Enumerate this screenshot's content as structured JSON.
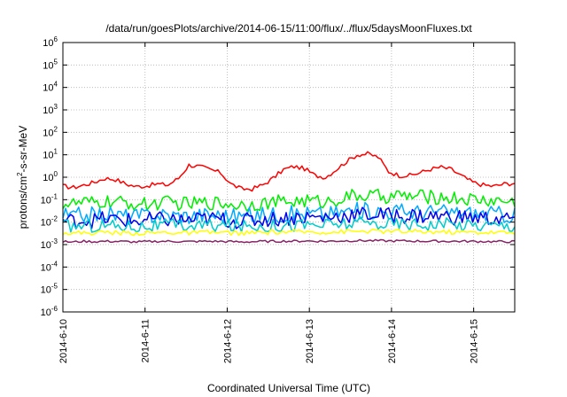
{
  "chart_data": {
    "type": "line",
    "title": "/data/run/goesPlots/archive/2014-06-15/11:00/flux/../flux/5daysMoonFluxes.txt",
    "xlabel": "Coordinated Universal Time (UTC)",
    "ylabel_parts": [
      "protons/cm",
      "2",
      "-s-sr-MeV"
    ],
    "x_range_days": [
      0,
      5.5
    ],
    "y_scale": "log",
    "ylim": [
      1e-06,
      1000000.0
    ],
    "grid": true,
    "x_ticks": [
      "2014-6-10",
      "2014-6-11",
      "2014-6-12",
      "2014-6-13",
      "2014-6-14",
      "2014-6-15"
    ],
    "y_ticks": [
      {
        "base": "10",
        "exp": "-6"
      },
      {
        "base": "10",
        "exp": "-5"
      },
      {
        "base": "10",
        "exp": "-4"
      },
      {
        "base": "10",
        "exp": "-3"
      },
      {
        "base": "10",
        "exp": "-2"
      },
      {
        "base": "10",
        "exp": "-1"
      },
      {
        "base": "10",
        "exp": "0"
      },
      {
        "base": "10",
        "exp": "1"
      },
      {
        "base": "10",
        "exp": "2"
      },
      {
        "base": "10",
        "exp": "3"
      },
      {
        "base": "10",
        "exp": "4"
      },
      {
        "base": "10",
        "exp": "5"
      },
      {
        "base": "10",
        "exp": "6"
      }
    ],
    "series": [
      {
        "color": "#ff0000",
        "values": [
          0.4,
          0.35,
          0.45,
          0.6,
          0.9,
          0.8,
          0.5,
          0.38,
          0.42,
          0.5,
          0.45,
          0.9,
          3.5,
          3.0,
          2.2,
          1.6,
          0.5,
          0.3,
          0.3,
          0.45,
          0.9,
          2.2,
          3.0,
          2.4,
          1.2,
          1.0,
          2.2,
          5.0,
          10.0,
          11.0,
          8.0,
          1.8,
          1.2,
          1.2,
          1.6,
          2.3,
          2.8,
          2.2,
          1.1,
          0.6,
          0.45,
          0.4,
          0.5,
          0.55
        ]
      },
      {
        "color": "#00ee00",
        "values": [
          0.07,
          0.065,
          0.072,
          0.068,
          0.08,
          0.075,
          0.07,
          0.065,
          0.06,
          0.07,
          0.072,
          0.068,
          0.065,
          0.07,
          0.075,
          0.07,
          0.065,
          0.06,
          0.068,
          0.07,
          0.075,
          0.08,
          0.085,
          0.09,
          0.085,
          0.08,
          0.1,
          0.13,
          0.15,
          0.15,
          0.14,
          0.14,
          0.15,
          0.14,
          0.14,
          0.13,
          0.13,
          0.12,
          0.11,
          0.1,
          0.095,
          0.09,
          0.085,
          0.08
        ]
      },
      {
        "color": "#00aaff",
        "values": [
          0.02,
          0.018,
          0.022,
          0.02,
          0.024,
          0.021,
          0.019,
          0.018,
          0.02,
          0.022,
          0.021,
          0.02,
          0.019,
          0.021,
          0.022,
          0.02,
          0.019,
          0.018,
          0.02,
          0.021,
          0.022,
          0.023,
          0.024,
          0.025,
          0.024,
          0.023,
          0.026,
          0.03,
          0.032,
          0.033,
          0.032,
          0.03,
          0.031,
          0.03,
          0.029,
          0.028,
          0.028,
          0.027,
          0.026,
          0.025,
          0.024,
          0.023,
          0.022,
          0.021
        ]
      },
      {
        "color": "#0000ee",
        "values": [
          0.012,
          0.011,
          0.013,
          0.012,
          0.014,
          0.013,
          0.012,
          0.011,
          0.012,
          0.013,
          0.013,
          0.012,
          0.012,
          0.013,
          0.014,
          0.013,
          0.012,
          0.011,
          0.012,
          0.013,
          0.014,
          0.015,
          0.016,
          0.017,
          0.016,
          0.016,
          0.018,
          0.02,
          0.022,
          0.022,
          0.021,
          0.02,
          0.02,
          0.019,
          0.019,
          0.018,
          0.018,
          0.017,
          0.016,
          0.016,
          0.015,
          0.014,
          0.014,
          0.013
        ]
      },
      {
        "color": "#00cccc",
        "values": [
          0.007,
          0.0065,
          0.0072,
          0.0068,
          0.0075,
          0.007,
          0.0068,
          0.0065,
          0.0068,
          0.007,
          0.0072,
          0.007,
          0.0068,
          0.007,
          0.0072,
          0.007,
          0.0068,
          0.0066,
          0.0068,
          0.007,
          0.0072,
          0.0074,
          0.0076,
          0.0078,
          0.0076,
          0.0075,
          0.008,
          0.0085,
          0.0088,
          0.009,
          0.0088,
          0.0085,
          0.0086,
          0.0085,
          0.0084,
          0.0082,
          0.0082,
          0.008,
          0.0078,
          0.0076,
          0.0075,
          0.0074,
          0.0073,
          0.0072
        ]
      },
      {
        "color": "#ffff00",
        "values": [
          0.0035,
          0.0032,
          0.0034,
          0.0033,
          0.0036,
          0.0034,
          0.0033,
          0.0032,
          0.0033,
          0.0034,
          0.0035,
          0.0034,
          0.0033,
          0.0034,
          0.0035,
          0.0034,
          0.0033,
          0.0032,
          0.0033,
          0.0034,
          0.0035,
          0.0036,
          0.0036,
          0.0037,
          0.0036,
          0.0036,
          0.0037,
          0.0038,
          0.0039,
          0.004,
          0.0039,
          0.0038,
          0.0038,
          0.0038,
          0.0037,
          0.0037,
          0.0037,
          0.0036,
          0.0036,
          0.0035,
          0.0035,
          0.0035,
          0.0034,
          0.0034
        ]
      },
      {
        "color": "#882266",
        "values": [
          0.00135,
          0.0013,
          0.0014,
          0.00135,
          0.0014,
          0.00138,
          0.00135,
          0.0013,
          0.00135,
          0.0014,
          0.0014,
          0.00138,
          0.00135,
          0.00138,
          0.0014,
          0.00138,
          0.00135,
          0.0013,
          0.00135,
          0.00138,
          0.0014,
          0.00142,
          0.00142,
          0.00145,
          0.00142,
          0.0014,
          0.00145,
          0.00148,
          0.0015,
          0.0015,
          0.00148,
          0.00145,
          0.00145,
          0.00145,
          0.00142,
          0.00142,
          0.00142,
          0.0014,
          0.0014,
          0.00138,
          0.00138,
          0.00135,
          0.00135,
          0.00135
        ]
      }
    ]
  }
}
